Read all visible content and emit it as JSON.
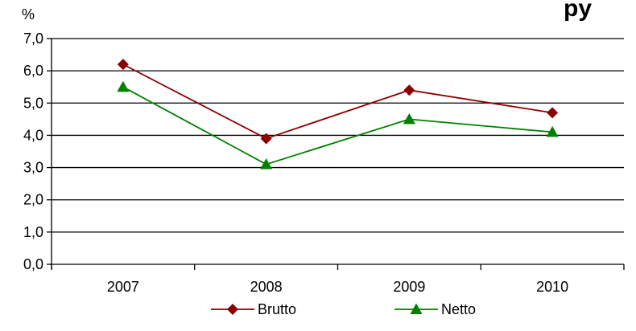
{
  "chart_data": {
    "type": "line",
    "title": "",
    "title_visible_fragment": "py",
    "ylabel": "%",
    "xlabel": "",
    "categories": [
      "2007",
      "2008",
      "2009",
      "2010"
    ],
    "ylim": [
      0,
      7
    ],
    "yticks": [
      "0,0",
      "1,0",
      "2,0",
      "3,0",
      "4,0",
      "5,0",
      "6,0",
      "7,0"
    ],
    "grid": true,
    "legend": "bottom-center",
    "series": [
      {
        "name": "Brutto",
        "values": [
          6.2,
          3.9,
          5.4,
          4.7
        ],
        "color": "#8b0000",
        "marker": "diamond"
      },
      {
        "name": "Netto",
        "values": [
          5.5,
          3.1,
          4.5,
          4.1
        ],
        "color": "#008000",
        "marker": "triangle"
      }
    ]
  }
}
